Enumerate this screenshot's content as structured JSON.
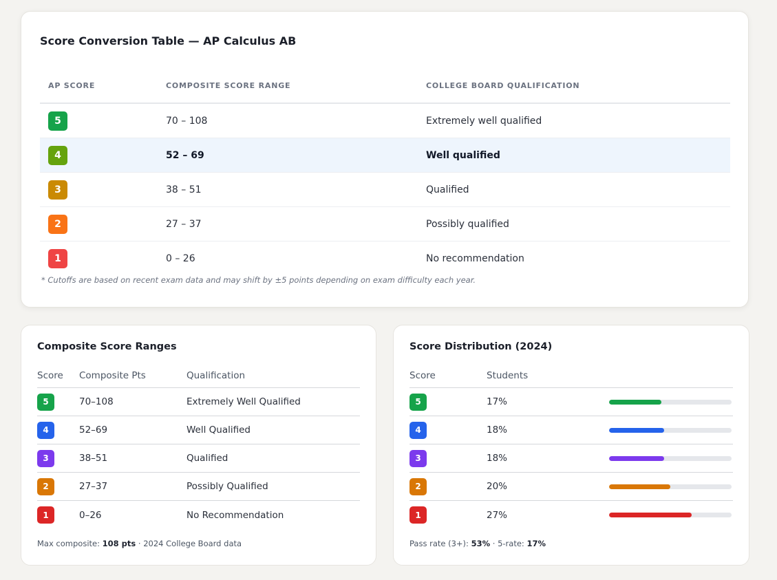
{
  "main": {
    "title": "Score Conversion Table — AP Calculus AB",
    "headers": [
      "AP SCORE",
      "COMPOSITE SCORE RANGE",
      "COLLEGE BOARD QUALIFICATION"
    ],
    "rows": [
      {
        "score": "5",
        "range": "70 – 108",
        "qualification": "Extremely well qualified",
        "color": "#16a34a",
        "highlight": false
      },
      {
        "score": "4",
        "range": "52 – 69",
        "qualification": "Well qualified",
        "color": "#65a30d",
        "highlight": true
      },
      {
        "score": "3",
        "range": "38 – 51",
        "qualification": "Qualified",
        "color": "#ca8a04",
        "highlight": false
      },
      {
        "score": "2",
        "range": "27 – 37",
        "qualification": "Possibly qualified",
        "color": "#f97316",
        "highlight": false
      },
      {
        "score": "1",
        "range": "0 – 26",
        "qualification": "No recommendation",
        "color": "#ef4444",
        "highlight": false
      }
    ],
    "footnote": "* Cutoffs are based on recent exam data and may shift by ±5 points depending on exam difficulty each year."
  },
  "ranges": {
    "title": "Composite Score Ranges",
    "headers": [
      "Score",
      "Composite Pts",
      "Qualification"
    ],
    "rows": [
      {
        "score": "5",
        "pts": "70–108",
        "qualification": "Extremely Well Qualified",
        "color": "#16a34a"
      },
      {
        "score": "4",
        "pts": "52–69",
        "qualification": "Well Qualified",
        "color": "#2563eb"
      },
      {
        "score": "3",
        "pts": "38–51",
        "qualification": "Qualified",
        "color": "#7c3aed"
      },
      {
        "score": "2",
        "pts": "27–37",
        "qualification": "Possibly Qualified",
        "color": "#d97706"
      },
      {
        "score": "1",
        "pts": "0–26",
        "qualification": "No Recommendation",
        "color": "#dc2626"
      }
    ],
    "footer_label": "Max composite: ",
    "footer_value": "108 pts",
    "footer_rest": " · 2024 College Board data"
  },
  "distribution": {
    "title": "Score Distribution (2024)",
    "headers": [
      "Score",
      "Students",
      ""
    ],
    "rows": [
      {
        "score": "5",
        "pct": "17%",
        "value": 17,
        "color": "#16a34a"
      },
      {
        "score": "4",
        "pct": "18%",
        "value": 18,
        "color": "#2563eb"
      },
      {
        "score": "3",
        "pct": "18%",
        "value": 18,
        "color": "#7c3aed"
      },
      {
        "score": "2",
        "pct": "20%",
        "value": 20,
        "color": "#d97706"
      },
      {
        "score": "1",
        "pct": "27%",
        "value": 27,
        "color": "#dc2626"
      }
    ],
    "bar_max": 40,
    "footer_label1": "Pass rate (3+): ",
    "footer_value1": "53%",
    "footer_sep": " · 5-rate: ",
    "footer_value2": "17%"
  }
}
